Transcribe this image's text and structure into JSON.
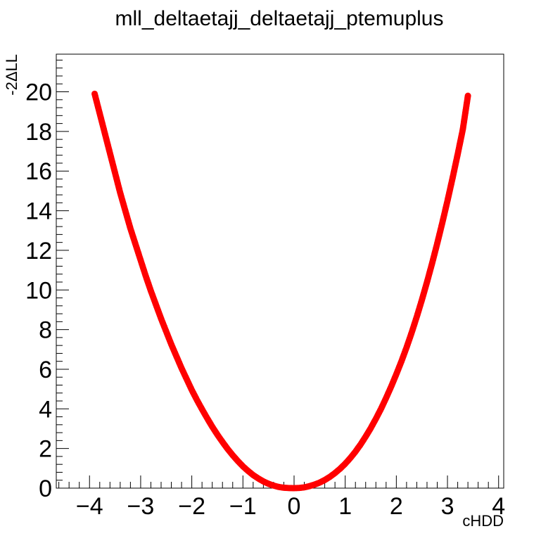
{
  "chart_data": {
    "type": "scatter",
    "title": "mll_deltaetajj_deltaetajj_ptemuplus",
    "xlabel": "cHDD",
    "ylabel": "-2ΔLL",
    "xlim": [
      -4.65,
      4.1
    ],
    "ylim": [
      0,
      21.9
    ],
    "x_ticks": [
      -4,
      -3,
      -2,
      -1,
      0,
      1,
      2,
      3,
      4
    ],
    "x_tick_labels": [
      "−4",
      "−3",
      "−2",
      "−1",
      "0",
      "1",
      "2",
      "3",
      "4"
    ],
    "y_ticks": [
      0,
      2,
      4,
      6,
      8,
      10,
      12,
      14,
      16,
      18,
      20
    ],
    "y_tick_labels": [
      "0",
      "2",
      "4",
      "6",
      "8",
      "10",
      "12",
      "14",
      "16",
      "18",
      "20"
    ],
    "grid": false,
    "marker_color": "#ff0000",
    "series": [
      {
        "points": [
          [
            -3.9,
            19.9
          ],
          [
            -3.8,
            18.9
          ],
          [
            -3.7,
            17.9
          ],
          [
            -3.6,
            16.9
          ],
          [
            -3.5,
            15.9
          ],
          [
            -3.4,
            14.9
          ],
          [
            -3.3,
            14.0
          ],
          [
            -3.2,
            13.1
          ],
          [
            -3.1,
            12.3
          ],
          [
            -3.0,
            11.5
          ],
          [
            -2.9,
            10.7
          ],
          [
            -2.8,
            9.95
          ],
          [
            -2.7,
            9.25
          ],
          [
            -2.6,
            8.55
          ],
          [
            -2.5,
            7.9
          ],
          [
            -2.4,
            7.25
          ],
          [
            -2.3,
            6.65
          ],
          [
            -2.2,
            6.05
          ],
          [
            -2.1,
            5.5
          ],
          [
            -2.0,
            4.95
          ],
          [
            -1.9,
            4.45
          ],
          [
            -1.8,
            3.98
          ],
          [
            -1.7,
            3.53
          ],
          [
            -1.6,
            3.1
          ],
          [
            -1.5,
            2.7
          ],
          [
            -1.4,
            2.33
          ],
          [
            -1.3,
            1.98
          ],
          [
            -1.2,
            1.66
          ],
          [
            -1.1,
            1.37
          ],
          [
            -1.0,
            1.1
          ],
          [
            -0.9,
            0.87
          ],
          [
            -0.8,
            0.66
          ],
          [
            -0.7,
            0.49
          ],
          [
            -0.6,
            0.34
          ],
          [
            -0.5,
            0.22
          ],
          [
            -0.4,
            0.13
          ],
          [
            -0.3,
            0.06
          ],
          [
            -0.2,
            0.02
          ],
          [
            -0.1,
            0.005
          ],
          [
            0.0,
            0.0
          ],
          [
            0.1,
            0.01
          ],
          [
            0.2,
            0.04
          ],
          [
            0.3,
            0.1
          ],
          [
            0.4,
            0.18
          ],
          [
            0.5,
            0.28
          ],
          [
            0.6,
            0.41
          ],
          [
            0.7,
            0.57
          ],
          [
            0.8,
            0.76
          ],
          [
            0.9,
            0.98
          ],
          [
            1.0,
            1.23
          ],
          [
            1.1,
            1.52
          ],
          [
            1.2,
            1.84
          ],
          [
            1.3,
            2.2
          ],
          [
            1.4,
            2.6
          ],
          [
            1.5,
            3.03
          ],
          [
            1.6,
            3.5
          ],
          [
            1.7,
            4.0
          ],
          [
            1.8,
            4.55
          ],
          [
            1.9,
            5.13
          ],
          [
            2.0,
            5.75
          ],
          [
            2.1,
            6.4
          ],
          [
            2.2,
            7.1
          ],
          [
            2.3,
            7.85
          ],
          [
            2.4,
            8.65
          ],
          [
            2.5,
            9.5
          ],
          [
            2.6,
            10.4
          ],
          [
            2.7,
            11.35
          ],
          [
            2.8,
            12.35
          ],
          [
            2.9,
            13.4
          ],
          [
            3.0,
            14.5
          ],
          [
            3.1,
            15.65
          ],
          [
            3.2,
            16.85
          ],
          [
            3.3,
            18.1
          ],
          [
            3.4,
            19.8
          ]
        ]
      }
    ]
  }
}
